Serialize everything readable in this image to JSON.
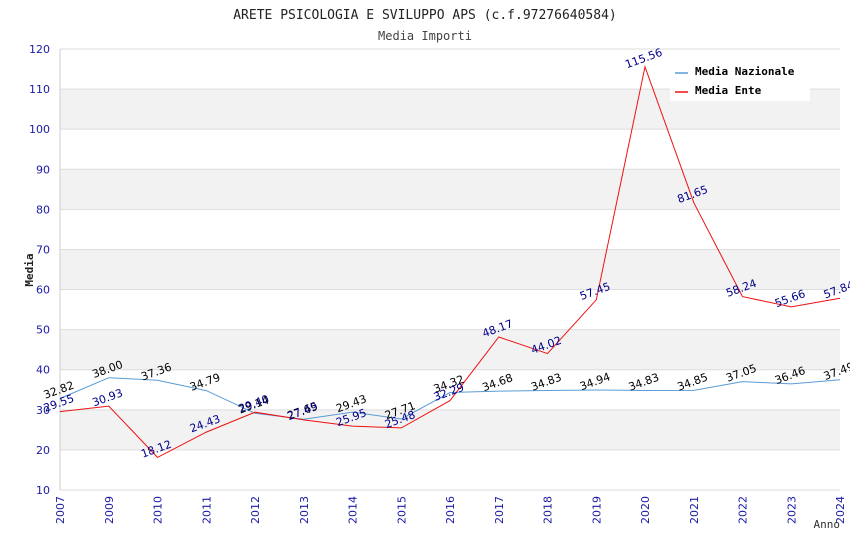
{
  "chart_data": {
    "type": "line",
    "title": "ARETE PSICOLOGIA E SVILUPPO APS (c.f.97276640584)",
    "subtitle": "Media Importi",
    "xlabel": "Anno",
    "ylabel": "Media",
    "ylim": [
      10,
      120
    ],
    "yticks": [
      10,
      20,
      30,
      40,
      50,
      60,
      70,
      80,
      90,
      100,
      110,
      120
    ],
    "x": [
      "2007",
      "2009",
      "2010",
      "2011",
      "2012",
      "2013",
      "2014",
      "2015",
      "2016",
      "2017",
      "2018",
      "2019",
      "2020",
      "2021",
      "2022",
      "2023",
      "2024"
    ],
    "legend_position": "top-right",
    "series": [
      {
        "name": "Media Nazionale",
        "color": "#5b9bd5",
        "label_color": "#000000",
        "values": [
          32.82,
          38.0,
          37.36,
          34.79,
          29.14,
          27.65,
          29.43,
          27.71,
          34.32,
          34.68,
          34.83,
          34.94,
          34.83,
          34.85,
          37.05,
          36.46,
          37.49
        ]
      },
      {
        "name": "Media Ente",
        "color": "#ee1111",
        "label_color": "#00008b",
        "values": [
          29.55,
          30.93,
          18.12,
          24.43,
          29.4,
          27.49,
          25.95,
          25.48,
          32.29,
          48.17,
          44.02,
          57.45,
          115.56,
          81.65,
          58.24,
          55.66,
          57.84
        ]
      }
    ]
  }
}
